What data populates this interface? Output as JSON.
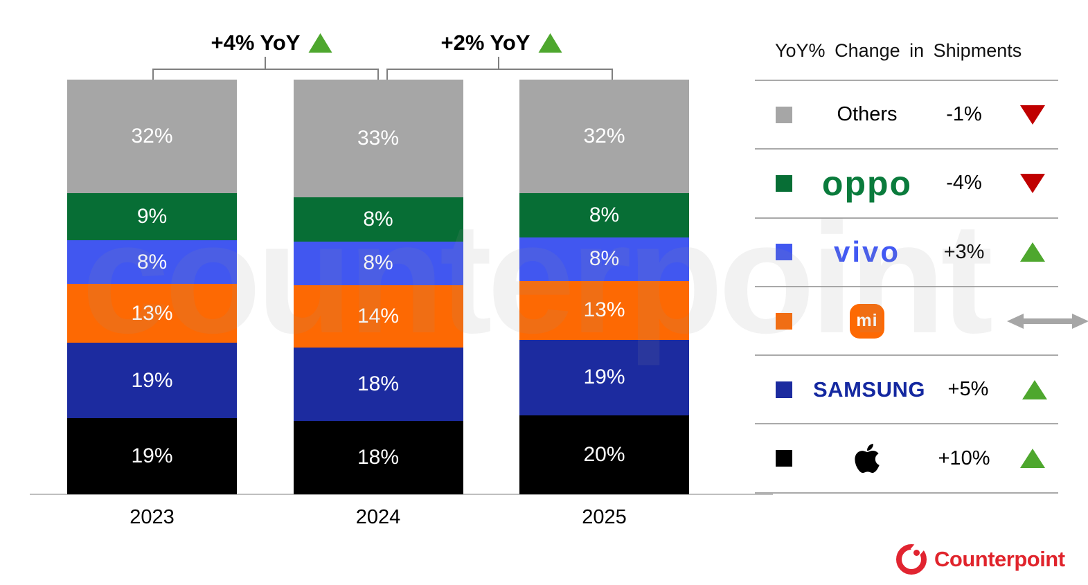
{
  "annotations": [
    {
      "label": "+4% YoY",
      "trend": "up",
      "from": "2023",
      "to": "2024"
    },
    {
      "label": "+2% YoY",
      "trend": "up",
      "from": "2024",
      "to": "2025"
    }
  ],
  "chart_data": {
    "type": "bar",
    "stacked": true,
    "categories": [
      "2023",
      "2024",
      "2025"
    ],
    "series": [
      {
        "name": "Others",
        "color": "#a6a6a6",
        "values": [
          32,
          33,
          32
        ]
      },
      {
        "name": "OPPO",
        "color": "#076e35",
        "values": [
          9,
          8,
          8
        ]
      },
      {
        "name": "vivo",
        "color": "#4157f0",
        "values": [
          8,
          8,
          8
        ]
      },
      {
        "name": "Xiaomi",
        "color": "#fd6903",
        "values": [
          13,
          14,
          13
        ]
      },
      {
        "name": "Samsung",
        "color": "#1c2b9f",
        "values": [
          19,
          18,
          19
        ]
      },
      {
        "name": "Apple",
        "color": "#000000",
        "values": [
          19,
          18,
          20
        ]
      }
    ],
    "value_suffix": "%",
    "ylim": [
      0,
      100
    ],
    "grid": false,
    "legend_position": "right"
  },
  "legend": {
    "title": "YoY% Change in Shipments",
    "rows": [
      {
        "name": "Others",
        "logo": "text",
        "logo_text": "Others",
        "change": "-1%",
        "trend": "down",
        "swatch": "#a6a6a6"
      },
      {
        "name": "OPPO",
        "logo": "oppo",
        "logo_text": "oppo",
        "change": "-4%",
        "trend": "down",
        "swatch": "#076e35"
      },
      {
        "name": "vivo",
        "logo": "vivo",
        "logo_text": "vivo",
        "change": "+3%",
        "trend": "up",
        "swatch": "#4157f0"
      },
      {
        "name": "Xiaomi",
        "logo": "xiaomi",
        "logo_text": "mi",
        "change": "",
        "trend": "flat",
        "swatch": "#fd6903"
      },
      {
        "name": "Samsung",
        "logo": "samsung",
        "logo_text": "SAMSUNG",
        "change": "+5%",
        "trend": "up",
        "swatch": "#1c2b9f"
      },
      {
        "name": "Apple",
        "logo": "apple",
        "logo_text": "",
        "change": "+10%",
        "trend": "up",
        "swatch": "#000000"
      }
    ]
  },
  "colors": {
    "trend_up": "#4ea72e",
    "trend_down": "#c00000",
    "trend_flat": "#a6a6a6",
    "axis": "#bfbfbf",
    "brand_red": "#e0242c"
  },
  "watermark": "counterpoint",
  "footer": {
    "brand": "Counterpoint"
  }
}
